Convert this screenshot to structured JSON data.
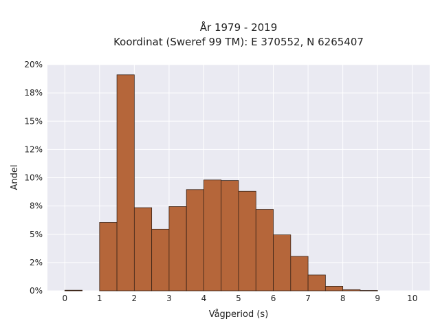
{
  "chart_data": {
    "type": "bar",
    "title_line1": "År 1979 - 2019",
    "title_line2": "Koordinat (Sweref 99 TM): E 370552, N 6265407",
    "xlabel": "Vågperiod (s)",
    "ylabel": "Andel",
    "xlim": [
      -0.5,
      10.5
    ],
    "ylim": [
      0,
      20
    ],
    "x_ticks": [
      0,
      1,
      2,
      3,
      4,
      5,
      6,
      7,
      8,
      9,
      10
    ],
    "y_ticks": [
      0,
      2.5,
      5,
      7.5,
      10,
      12.5,
      15,
      17.5,
      20
    ],
    "y_tick_labels": [
      "0%",
      "2%",
      "5%",
      "8%",
      "10%",
      "12%",
      "15%",
      "18%",
      "20%"
    ],
    "bin_width": 0.5,
    "bins": [
      {
        "x0": 0.0,
        "value": 0.05
      },
      {
        "x0": 0.5,
        "value": 0.0
      },
      {
        "x0": 1.0,
        "value": 6.05
      },
      {
        "x0": 1.5,
        "value": 19.1
      },
      {
        "x0": 2.0,
        "value": 7.35
      },
      {
        "x0": 2.5,
        "value": 5.45
      },
      {
        "x0": 3.0,
        "value": 7.45
      },
      {
        "x0": 3.5,
        "value": 8.95
      },
      {
        "x0": 4.0,
        "value": 9.8
      },
      {
        "x0": 4.5,
        "value": 9.75
      },
      {
        "x0": 5.0,
        "value": 8.8
      },
      {
        "x0": 5.5,
        "value": 7.2
      },
      {
        "x0": 6.0,
        "value": 4.95
      },
      {
        "x0": 6.5,
        "value": 3.05
      },
      {
        "x0": 7.0,
        "value": 1.4
      },
      {
        "x0": 7.5,
        "value": 0.4
      },
      {
        "x0": 8.0,
        "value": 0.1
      },
      {
        "x0": 8.5,
        "value": 0.03
      }
    ],
    "grid": true,
    "colors": {
      "bar_fill": "#b5663a",
      "bar_edge": "#3a2418",
      "plot_background": "#eaeaf2",
      "grid": "#ffffff"
    }
  }
}
